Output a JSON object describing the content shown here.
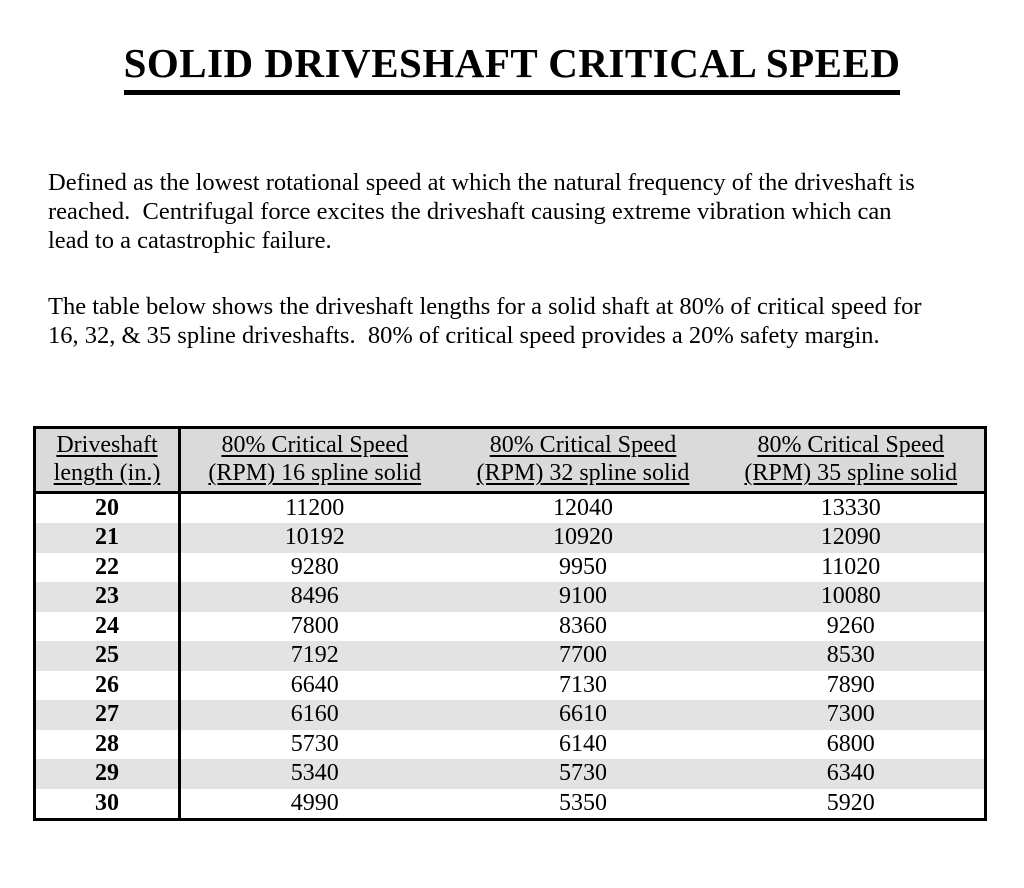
{
  "page": {
    "title": "SOLID DRIVESHAFT CRITICAL SPEED"
  },
  "paragraphs": {
    "definition": {
      "lines": [
        "Defined as the lowest rotational speed at which the natural frequency of the driveshaft is",
        "reached.  Centrifugal force excites the driveshaft causing extreme vibration which can",
        "lead to a catastrophic failure."
      ]
    },
    "intro": {
      "lines": [
        "The table below shows the driveshaft lengths for a solid shaft at 80% of critical speed for",
        "16, 32, & 35 spline driveshafts.  80% of critical speed provides a 20% safety margin."
      ]
    }
  },
  "table": {
    "headers": [
      {
        "line1": "Driveshaft",
        "line2": "length (in.)"
      },
      {
        "line1": "80% Critical Speed",
        "line2": "(RPM) 16 spline solid"
      },
      {
        "line1": "80% Critical Speed",
        "line2": "(RPM) 32 spline solid"
      },
      {
        "line1": "80% Critical Speed",
        "line2": "(RPM) 35 spline solid"
      }
    ],
    "rows": [
      {
        "length": "20",
        "rpm16": "11200",
        "rpm32": "12040",
        "rpm35": "13330"
      },
      {
        "length": "21",
        "rpm16": "10192",
        "rpm32": "10920",
        "rpm35": "12090"
      },
      {
        "length": "22",
        "rpm16": "9280",
        "rpm32": "9950",
        "rpm35": "11020"
      },
      {
        "length": "23",
        "rpm16": "8496",
        "rpm32": "9100",
        "rpm35": "10080"
      },
      {
        "length": "24",
        "rpm16": "7800",
        "rpm32": "8360",
        "rpm35": "9260"
      },
      {
        "length": "25",
        "rpm16": "7192",
        "rpm32": "7700",
        "rpm35": "8530"
      },
      {
        "length": "26",
        "rpm16": "6640",
        "rpm32": "7130",
        "rpm35": "7890"
      },
      {
        "length": "27",
        "rpm16": "6160",
        "rpm32": "6610",
        "rpm35": "7300"
      },
      {
        "length": "28",
        "rpm16": "5730",
        "rpm32": "6140",
        "rpm35": "6800"
      },
      {
        "length": "29",
        "rpm16": "5340",
        "rpm32": "5730",
        "rpm35": "6340"
      },
      {
        "length": "30",
        "rpm16": "4990",
        "rpm32": "5350",
        "rpm35": "5920"
      }
    ]
  },
  "colors": {
    "text": "#000000",
    "header_bg": "#dadada",
    "stripe_bg": "#e3e3e3",
    "background": "#ffffff"
  }
}
